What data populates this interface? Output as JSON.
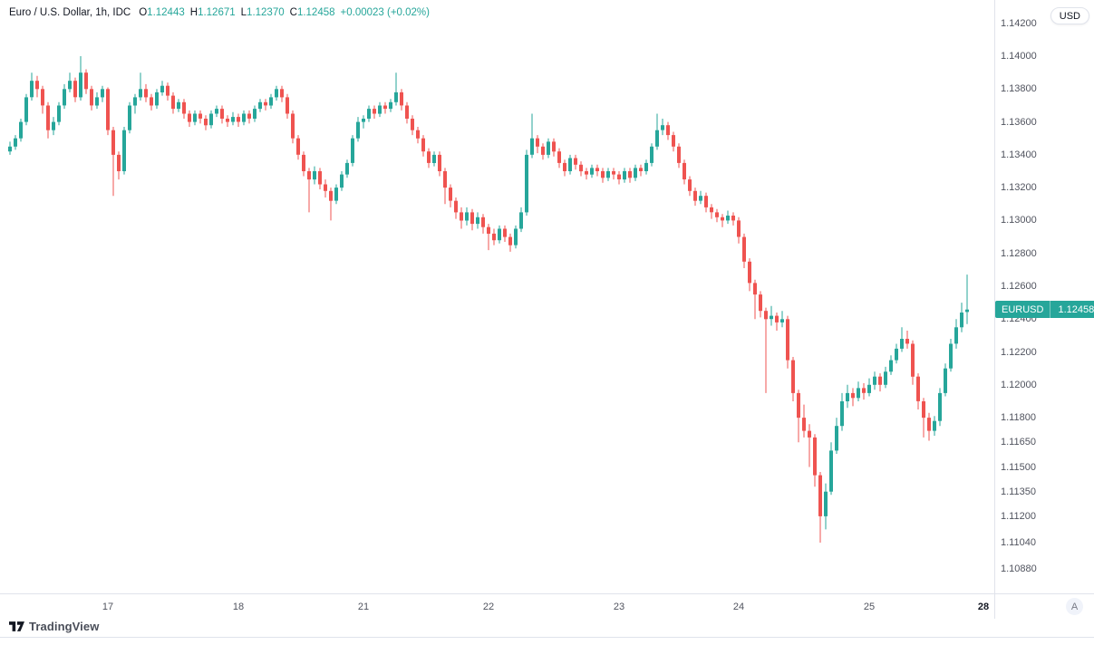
{
  "header": {
    "symbol_title": "Euro / U.S. Dollar, 1h, IDC",
    "ohlc": {
      "open_label": "O",
      "open": "1.12443",
      "high_label": "H",
      "high": "1.12671",
      "low_label": "L",
      "low": "1.12370",
      "close_label": "C",
      "close": "1.12458",
      "change": "+0.00023 (+0.02%)"
    },
    "currency_button": "USD"
  },
  "price_axis": {
    "price_tag": {
      "symbol": "EURUSD",
      "price": "1.12458"
    }
  },
  "time_axis": {
    "auto_button_label": "A"
  },
  "footer": {
    "brand": "TradingView"
  },
  "colors": {
    "up": "#26a69a",
    "down": "#ef5350",
    "text": "#131722",
    "axis_text": "#50535e",
    "divider": "#e0e3eb",
    "tag_bg": "#26a69a"
  },
  "chart_data": {
    "type": "candlestick",
    "title": "Euro / U.S. Dollar, 1h, IDC",
    "symbol": "EURUSD",
    "timeframe": "1h",
    "exchange": "IDC",
    "current_candle": {
      "open": 1.12443,
      "high": 1.12671,
      "low": 1.1237,
      "close": 1.12458,
      "change": "+0.00023 (+0.02%)"
    },
    "y_axis": {
      "top_price": 1.14342,
      "bottom_price": 1.10731,
      "tick_labels": [
        "1.14200",
        "1.14000",
        "1.13800",
        "1.13600",
        "1.13400",
        "1.13200",
        "1.13000",
        "1.12800",
        "1.12600",
        "1.12400",
        "1.12200",
        "1.12000",
        "1.11800",
        "1.11650",
        "1.11500",
        "1.11350",
        "1.11200",
        "1.11040",
        "1.10880"
      ]
    },
    "x_ticks": [
      {
        "label": "17",
        "index": 18,
        "bold": false
      },
      {
        "label": "18",
        "index": 42,
        "bold": false
      },
      {
        "label": "21",
        "index": 65,
        "bold": false
      },
      {
        "label": "22",
        "index": 88,
        "bold": false
      },
      {
        "label": "23",
        "index": 112,
        "bold": false
      },
      {
        "label": "24",
        "index": 134,
        "bold": false
      },
      {
        "label": "25",
        "index": 158,
        "bold": false
      },
      {
        "label": "28",
        "index": 179,
        "bold": true
      }
    ],
    "candles": [
      [
        1.1342,
        1.1348,
        1.134,
        1.1345
      ],
      [
        1.1345,
        1.1352,
        1.1343,
        1.135
      ],
      [
        1.135,
        1.1362,
        1.1348,
        1.136
      ],
      [
        1.136,
        1.1377,
        1.1358,
        1.1375
      ],
      [
        1.1375,
        1.139,
        1.1373,
        1.1385
      ],
      [
        1.1385,
        1.1388,
        1.1375,
        1.138
      ],
      [
        1.138,
        1.1382,
        1.1365,
        1.137
      ],
      [
        1.137,
        1.1372,
        1.135,
        1.1355
      ],
      [
        1.1355,
        1.1363,
        1.1352,
        1.136
      ],
      [
        1.136,
        1.1372,
        1.1358,
        1.137
      ],
      [
        1.137,
        1.1383,
        1.1368,
        1.138
      ],
      [
        1.138,
        1.139,
        1.1378,
        1.1385
      ],
      [
        1.1385,
        1.1387,
        1.1372,
        1.1375
      ],
      [
        1.1375,
        1.14,
        1.1373,
        1.139
      ],
      [
        1.139,
        1.1392,
        1.1377,
        1.138
      ],
      [
        1.138,
        1.1382,
        1.1367,
        1.137
      ],
      [
        1.137,
        1.1378,
        1.1368,
        1.1375
      ],
      [
        1.1375,
        1.1382,
        1.1372,
        1.138
      ],
      [
        1.138,
        1.1381,
        1.1352,
        1.1355
      ],
      [
        1.1355,
        1.1357,
        1.1315,
        1.134
      ],
      [
        1.134,
        1.1342,
        1.1325,
        1.133
      ],
      [
        1.133,
        1.1357,
        1.1328,
        1.1355
      ],
      [
        1.1355,
        1.1372,
        1.1353,
        1.137
      ],
      [
        1.137,
        1.1377,
        1.1365,
        1.1375
      ],
      [
        1.1375,
        1.139,
        1.1373,
        1.138
      ],
      [
        1.138,
        1.1383,
        1.1372,
        1.1375
      ],
      [
        1.1375,
        1.1377,
        1.1367,
        1.137
      ],
      [
        1.137,
        1.138,
        1.1368,
        1.1378
      ],
      [
        1.1378,
        1.1385,
        1.1376,
        1.1382
      ],
      [
        1.1382,
        1.1384,
        1.1373,
        1.1376
      ],
      [
        1.1376,
        1.1378,
        1.1365,
        1.1368
      ],
      [
        1.1368,
        1.1374,
        1.1366,
        1.1372
      ],
      [
        1.1372,
        1.1374,
        1.1362,
        1.1365
      ],
      [
        1.1365,
        1.1367,
        1.1357,
        1.136
      ],
      [
        1.136,
        1.1367,
        1.1358,
        1.1365
      ],
      [
        1.1365,
        1.1367,
        1.1359,
        1.1362
      ],
      [
        1.1362,
        1.1364,
        1.1355,
        1.1358
      ],
      [
        1.1358,
        1.1367,
        1.1356,
        1.1365
      ],
      [
        1.1365,
        1.137,
        1.1363,
        1.1368
      ],
      [
        1.1368,
        1.137,
        1.1359,
        1.1362
      ],
      [
        1.1362,
        1.1364,
        1.1357,
        1.136
      ],
      [
        1.136,
        1.1366,
        1.1358,
        1.1363
      ],
      [
        1.1363,
        1.1365,
        1.1357,
        1.136
      ],
      [
        1.136,
        1.1367,
        1.1358,
        1.1365
      ],
      [
        1.1365,
        1.1367,
        1.1359,
        1.1362
      ],
      [
        1.1362,
        1.137,
        1.136,
        1.1368
      ],
      [
        1.1368,
        1.1374,
        1.1366,
        1.1372
      ],
      [
        1.1372,
        1.1374,
        1.1367,
        1.137
      ],
      [
        1.137,
        1.1377,
        1.1368,
        1.1375
      ],
      [
        1.1375,
        1.1382,
        1.1373,
        1.138
      ],
      [
        1.138,
        1.1382,
        1.1372,
        1.1375
      ],
      [
        1.1375,
        1.1377,
        1.1362,
        1.1365
      ],
      [
        1.1365,
        1.1367,
        1.1347,
        1.135
      ],
      [
        1.135,
        1.1352,
        1.1337,
        1.134
      ],
      [
        1.134,
        1.1342,
        1.1327,
        1.133
      ],
      [
        1.133,
        1.1332,
        1.1305,
        1.1325
      ],
      [
        1.1325,
        1.1333,
        1.1322,
        1.133
      ],
      [
        1.133,
        1.1332,
        1.1319,
        1.1322
      ],
      [
        1.1322,
        1.1325,
        1.1314,
        1.1318
      ],
      [
        1.1318,
        1.132,
        1.13,
        1.1312
      ],
      [
        1.1312,
        1.1322,
        1.131,
        1.132
      ],
      [
        1.132,
        1.133,
        1.1318,
        1.1328
      ],
      [
        1.1328,
        1.1337,
        1.1326,
        1.1335
      ],
      [
        1.1335,
        1.1352,
        1.1333,
        1.135
      ],
      [
        1.135,
        1.1363,
        1.1348,
        1.136
      ],
      [
        1.136,
        1.1364,
        1.1356,
        1.1362
      ],
      [
        1.1362,
        1.137,
        1.136,
        1.1368
      ],
      [
        1.1368,
        1.137,
        1.1362,
        1.1365
      ],
      [
        1.1365,
        1.1372,
        1.1363,
        1.137
      ],
      [
        1.137,
        1.1372,
        1.1365,
        1.1368
      ],
      [
        1.1368,
        1.1374,
        1.1366,
        1.1372
      ],
      [
        1.1372,
        1.139,
        1.137,
        1.1378
      ],
      [
        1.1378,
        1.138,
        1.1367,
        1.137
      ],
      [
        1.137,
        1.1372,
        1.1359,
        1.1362
      ],
      [
        1.1362,
        1.1364,
        1.1352,
        1.1355
      ],
      [
        1.1355,
        1.1357,
        1.1347,
        1.135
      ],
      [
        1.135,
        1.1352,
        1.1339,
        1.1342
      ],
      [
        1.1342,
        1.1344,
        1.1332,
        1.1335
      ],
      [
        1.1335,
        1.1342,
        1.1333,
        1.134
      ],
      [
        1.134,
        1.1342,
        1.1327,
        1.133
      ],
      [
        1.133,
        1.1332,
        1.131,
        1.132
      ],
      [
        1.132,
        1.1322,
        1.1308,
        1.1312
      ],
      [
        1.1312,
        1.1314,
        1.1301,
        1.1305
      ],
      [
        1.1305,
        1.1308,
        1.1295,
        1.13
      ],
      [
        1.13,
        1.1308,
        1.1297,
        1.1305
      ],
      [
        1.1305,
        1.1307,
        1.1294,
        1.1298
      ],
      [
        1.1298,
        1.1305,
        1.1295,
        1.1302
      ],
      [
        1.1302,
        1.1304,
        1.1292,
        1.1296
      ],
      [
        1.1296,
        1.1298,
        1.1282,
        1.1292
      ],
      [
        1.1292,
        1.1295,
        1.1285,
        1.1288
      ],
      [
        1.1288,
        1.1297,
        1.1286,
        1.1295
      ],
      [
        1.1295,
        1.1297,
        1.1287,
        1.129
      ],
      [
        1.129,
        1.1292,
        1.1281,
        1.1285
      ],
      [
        1.1285,
        1.1297,
        1.1283,
        1.1295
      ],
      [
        1.1295,
        1.1308,
        1.1293,
        1.1305
      ],
      [
        1.1305,
        1.1343,
        1.1303,
        1.134
      ],
      [
        1.134,
        1.1365,
        1.1338,
        1.135
      ],
      [
        1.135,
        1.1352,
        1.1341,
        1.1345
      ],
      [
        1.1345,
        1.1347,
        1.1337,
        1.134
      ],
      [
        1.134,
        1.135,
        1.1338,
        1.1348
      ],
      [
        1.1348,
        1.135,
        1.1339,
        1.1342
      ],
      [
        1.1342,
        1.1344,
        1.1332,
        1.1335
      ],
      [
        1.1335,
        1.1337,
        1.1327,
        1.133
      ],
      [
        1.133,
        1.134,
        1.1328,
        1.1338
      ],
      [
        1.1338,
        1.134,
        1.1331,
        1.1334
      ],
      [
        1.1334,
        1.1336,
        1.1327,
        1.133
      ],
      [
        1.133,
        1.1332,
        1.1325,
        1.1328
      ],
      [
        1.1328,
        1.1334,
        1.1326,
        1.1332
      ],
      [
        1.1332,
        1.1334,
        1.1327,
        1.133
      ],
      [
        1.133,
        1.1332,
        1.1323,
        1.1326
      ],
      [
        1.1326,
        1.1332,
        1.1324,
        1.133
      ],
      [
        1.133,
        1.1332,
        1.1325,
        1.1328
      ],
      [
        1.1328,
        1.133,
        1.1322,
        1.1325
      ],
      [
        1.1325,
        1.1332,
        1.1323,
        1.133
      ],
      [
        1.133,
        1.1332,
        1.1323,
        1.1326
      ],
      [
        1.1326,
        1.1334,
        1.1324,
        1.1332
      ],
      [
        1.1332,
        1.1334,
        1.1327,
        1.133
      ],
      [
        1.133,
        1.1337,
        1.1328,
        1.1335
      ],
      [
        1.1335,
        1.1347,
        1.1333,
        1.1345
      ],
      [
        1.1345,
        1.1365,
        1.1343,
        1.1355
      ],
      [
        1.1355,
        1.1362,
        1.1352,
        1.1358
      ],
      [
        1.1358,
        1.136,
        1.1349,
        1.1352
      ],
      [
        1.1352,
        1.1354,
        1.1342,
        1.1345
      ],
      [
        1.1345,
        1.1347,
        1.1332,
        1.1335
      ],
      [
        1.1335,
        1.1337,
        1.1322,
        1.1325
      ],
      [
        1.1325,
        1.1327,
        1.1315,
        1.1318
      ],
      [
        1.1318,
        1.132,
        1.1309,
        1.1312
      ],
      [
        1.1312,
        1.1318,
        1.131,
        1.1315
      ],
      [
        1.1315,
        1.1317,
        1.1305,
        1.1308
      ],
      [
        1.1308,
        1.131,
        1.1301,
        1.1305
      ],
      [
        1.1305,
        1.1307,
        1.1299,
        1.1302
      ],
      [
        1.1302,
        1.1304,
        1.1296,
        1.13
      ],
      [
        1.13,
        1.1306,
        1.1298,
        1.1303
      ],
      [
        1.1303,
        1.1305,
        1.1297,
        1.13
      ],
      [
        1.13,
        1.1302,
        1.1286,
        1.129
      ],
      [
        1.129,
        1.1292,
        1.1271,
        1.1275
      ],
      [
        1.1275,
        1.1277,
        1.1257,
        1.1262
      ],
      [
        1.1262,
        1.1264,
        1.124,
        1.1255
      ],
      [
        1.1255,
        1.1257,
        1.1241,
        1.1245
      ],
      [
        1.1245,
        1.1247,
        1.1195,
        1.124
      ],
      [
        1.124,
        1.1248,
        1.1236,
        1.1242
      ],
      [
        1.1242,
        1.1244,
        1.1233,
        1.1238
      ],
      [
        1.1238,
        1.1245,
        1.1235,
        1.124
      ],
      [
        1.124,
        1.1242,
        1.121,
        1.1215
      ],
      [
        1.1215,
        1.1217,
        1.119,
        1.1195
      ],
      [
        1.1195,
        1.1197,
        1.1165,
        1.118
      ],
      [
        1.118,
        1.1188,
        1.1168,
        1.1172
      ],
      [
        1.1172,
        1.1176,
        1.115,
        1.1168
      ],
      [
        1.1168,
        1.117,
        1.1138,
        1.1145
      ],
      [
        1.1145,
        1.1147,
        1.1104,
        1.112
      ],
      [
        1.112,
        1.114,
        1.1112,
        1.1135
      ],
      [
        1.1135,
        1.1165,
        1.1133,
        1.116
      ],
      [
        1.116,
        1.118,
        1.1158,
        1.1175
      ],
      [
        1.1175,
        1.1195,
        1.1172,
        1.119
      ],
      [
        1.119,
        1.12,
        1.1186,
        1.1195
      ],
      [
        1.1195,
        1.1198,
        1.1187,
        1.1192
      ],
      [
        1.1192,
        1.1202,
        1.119,
        1.1198
      ],
      [
        1.1198,
        1.1201,
        1.1191,
        1.1195
      ],
      [
        1.1195,
        1.1204,
        1.1193,
        1.12
      ],
      [
        1.12,
        1.1208,
        1.1197,
        1.1205
      ],
      [
        1.1205,
        1.1207,
        1.1196,
        1.12
      ],
      [
        1.12,
        1.1211,
        1.1198,
        1.1208
      ],
      [
        1.1208,
        1.1218,
        1.1206,
        1.1215
      ],
      [
        1.1215,
        1.1225,
        1.1213,
        1.1222
      ],
      [
        1.1222,
        1.1235,
        1.122,
        1.1228
      ],
      [
        1.1228,
        1.1233,
        1.1222,
        1.1225
      ],
      [
        1.1225,
        1.1227,
        1.12,
        1.1205
      ],
      [
        1.1205,
        1.1207,
        1.1185,
        1.119
      ],
      [
        1.119,
        1.1192,
        1.1168,
        1.118
      ],
      [
        1.118,
        1.1183,
        1.1166,
        1.1172
      ],
      [
        1.1172,
        1.1181,
        1.1169,
        1.1178
      ],
      [
        1.1178,
        1.1198,
        1.1175,
        1.1195
      ],
      [
        1.1195,
        1.1213,
        1.1193,
        1.121
      ],
      [
        1.121,
        1.1228,
        1.1208,
        1.1225
      ],
      [
        1.1225,
        1.124,
        1.1222,
        1.1235
      ],
      [
        1.1235,
        1.125,
        1.1232,
        1.1244
      ],
      [
        1.12443,
        1.12671,
        1.1237,
        1.12458
      ]
    ]
  }
}
